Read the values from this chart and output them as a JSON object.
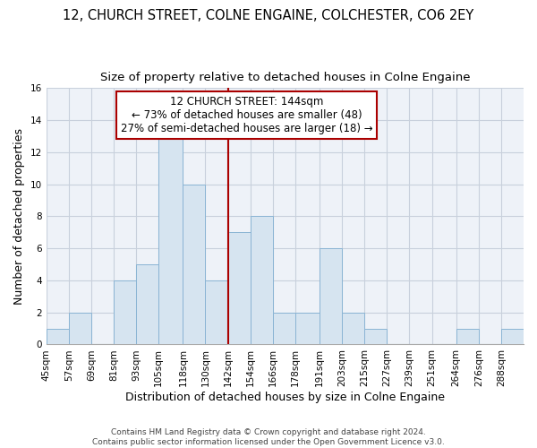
{
  "title": "12, CHURCH STREET, COLNE ENGAINE, COLCHESTER, CO6 2EY",
  "subtitle": "Size of property relative to detached houses in Colne Engaine",
  "xlabel": "Distribution of detached houses by size in Colne Engaine",
  "ylabel": "Number of detached properties",
  "bin_edges": [
    45,
    57,
    69,
    81,
    93,
    105,
    118,
    130,
    142,
    154,
    166,
    178,
    191,
    203,
    215,
    227,
    239,
    251,
    264,
    276,
    288
  ],
  "bin_labels": [
    "45sqm",
    "57sqm",
    "69sqm",
    "81sqm",
    "93sqm",
    "105sqm",
    "118sqm",
    "130sqm",
    "142sqm",
    "154sqm",
    "166sqm",
    "178sqm",
    "191sqm",
    "203sqm",
    "215sqm",
    "227sqm",
    "239sqm",
    "251sqm",
    "264sqm",
    "276sqm",
    "288sqm"
  ],
  "counts": [
    1,
    2,
    0,
    4,
    5,
    13,
    10,
    4,
    7,
    8,
    2,
    2,
    6,
    2,
    1,
    0,
    0,
    0,
    1,
    0,
    1
  ],
  "bar_color": "#d6e4f0",
  "bar_edge_color": "#8ab4d4",
  "reference_line_x": 142,
  "reference_line_color": "#aa0000",
  "annotation_line1": "12 CHURCH STREET: 144sqm",
  "annotation_line2": "← 73% of detached houses are smaller (48)",
  "annotation_line3": "27% of semi-detached houses are larger (18) →",
  "annotation_box_color": "#aa0000",
  "ylim": [
    0,
    16
  ],
  "yticks": [
    0,
    2,
    4,
    6,
    8,
    10,
    12,
    14,
    16
  ],
  "background_color": "#eef2f8",
  "grid_color": "#c8d0dc",
  "footer_text": "Contains HM Land Registry data © Crown copyright and database right 2024.\nContains public sector information licensed under the Open Government Licence v3.0.",
  "title_fontsize": 10.5,
  "subtitle_fontsize": 9.5,
  "xlabel_fontsize": 9,
  "ylabel_fontsize": 9,
  "tick_fontsize": 7.5,
  "annotation_fontsize": 8.5,
  "footer_fontsize": 6.5
}
